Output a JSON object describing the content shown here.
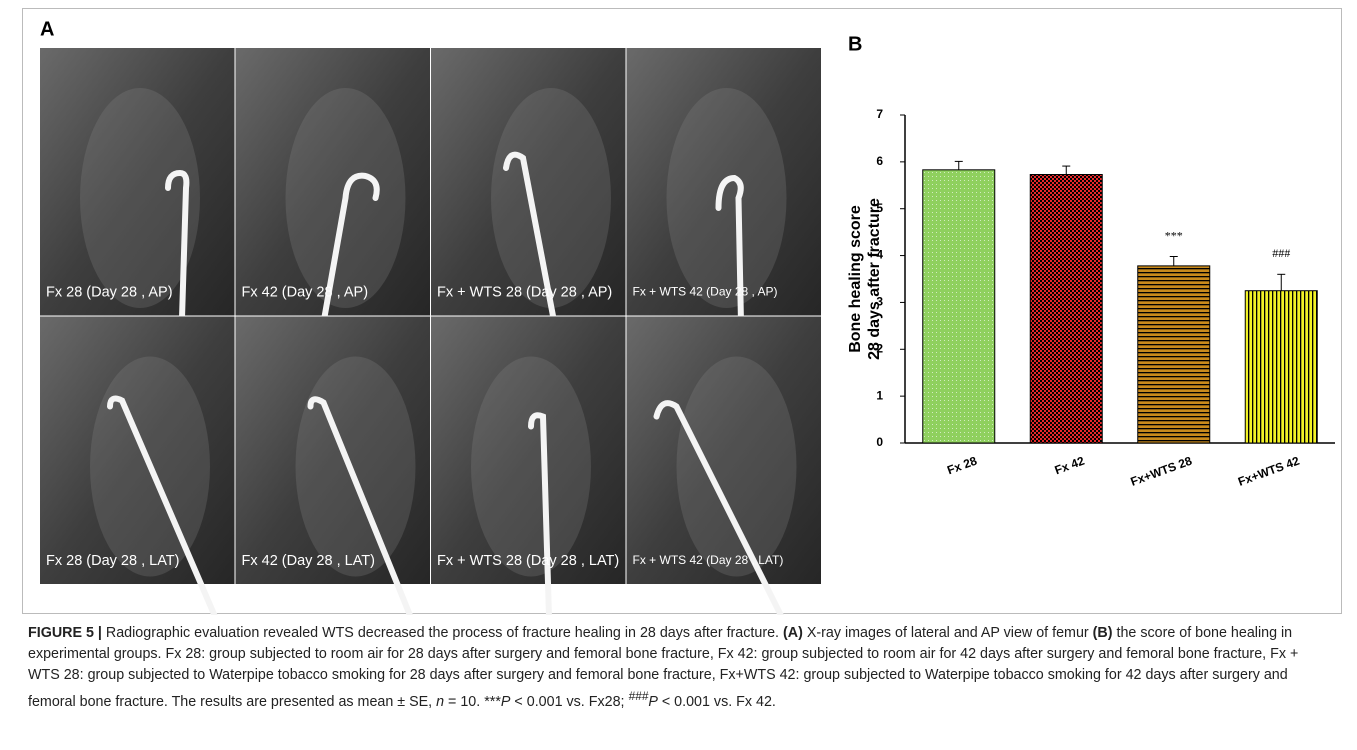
{
  "panels": {
    "a": "A",
    "b": "B"
  },
  "panel_a": {
    "images": [
      "Fx 28 (Day 28 , AP)",
      "Fx 42 (Day 28 , AP)",
      "Fx + WTS 28 (Day 28 , AP)",
      "Fx + WTS 42 (Day 28 , AP)",
      "Fx 28 (Day 28 , LAT)",
      "Fx 42 (Day 28 , LAT)",
      "Fx + WTS 28 (Day 28 , LAT)",
      "Fx + WTS 42 (Day 28 , LAT)"
    ]
  },
  "chart_data": {
    "type": "bar",
    "ylabel": [
      "Bone healing score",
      "28 days after fracture"
    ],
    "categories": [
      "Fx 28",
      "Fx 42",
      "Fx+WTS 28",
      "Fx+WTS 42"
    ],
    "values": [
      5.83,
      5.73,
      3.78,
      3.25
    ],
    "errors": [
      0.18,
      0.18,
      0.2,
      0.35
    ],
    "annotations": [
      null,
      null,
      "***",
      "###"
    ],
    "colors": [
      "#8fd05e",
      "#e8282a",
      "#c98a1c",
      "#f2f227"
    ],
    "patterns": [
      "dots",
      "checker",
      "hlines",
      "vlines"
    ],
    "ylim": [
      0,
      7
    ],
    "yticks": [
      0,
      1,
      2,
      3,
      4,
      5,
      6,
      7
    ]
  },
  "caption": [
    "FIGURE 5 |",
    " Radiographic evaluation revealed WTS decreased the process of fracture healing in 28 days after fracture. ",
    "(A)",
    " X-ray images of lateral and AP view of femur ",
    "(B)",
    " the score of bone healing in experimental groups. Fx 28: group subjected to room air for 28 days after surgery and femoral bone fracture, Fx 42: group subjected to room air for 42 days after surgery and femoral bone fracture, Fx + WTS 28: group subjected to Waterpipe tobacco smoking for 28 days after surgery and femoral bone fracture, Fx+WTS 42: group subjected to Waterpipe tobacco smoking for 42 days after surgery and femoral bone fracture. The results are presented as mean ± SE, ",
    "n",
    " = 10. ***",
    "P",
    " < 0.001 vs. Fx28; ",
    "###",
    "P",
    " < 0.001 vs. Fx 42."
  ]
}
